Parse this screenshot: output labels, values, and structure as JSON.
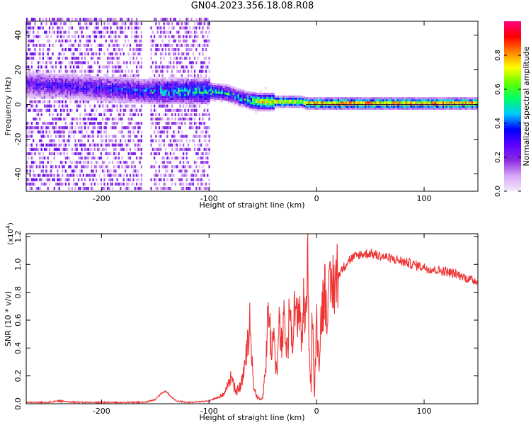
{
  "title": "GN04.2023.356.18.08.R08",
  "chart_data": [
    {
      "type": "heatmap",
      "xlabel": "Height of straight line (km)",
      "ylabel": "Frequency (Hz)",
      "xlim": [
        -270,
        150
      ],
      "ylim": [
        -50,
        48
      ],
      "xticks": [
        -200,
        -100,
        0,
        100
      ],
      "yticks": [
        -40,
        -20,
        0,
        20,
        40
      ],
      "colorbar": {
        "label": "Normalized spectral amplitude",
        "range": [
          0,
          1
        ],
        "ticks": [
          "0.0",
          "0.2",
          "0.4",
          "0.6",
          "0.8"
        ],
        "colors": [
          "#f4eafc",
          "#d6a6f7",
          "#8a2be2",
          "#5a00ff",
          "#0000ff",
          "#00c8ff",
          "#00ff64",
          "#64ff00",
          "#ffff00",
          "#ff8000",
          "#ff0000",
          "#ff0080"
        ]
      },
      "ridge": {
        "x": [
          -270,
          -240,
          -210,
          -180,
          -160,
          -140,
          -120,
          -100,
          -85,
          -75,
          -65,
          -55,
          -45,
          -35,
          -25,
          -15,
          -10,
          0,
          50,
          100,
          150
        ],
        "frequency": [
          11,
          10,
          9,
          8,
          7,
          7,
          7,
          7,
          6,
          4,
          2,
          1,
          1,
          1,
          1,
          1,
          0,
          0,
          0,
          0,
          0
        ],
        "amplitude": [
          0.3,
          0.35,
          0.35,
          0.4,
          0.45,
          0.55,
          0.55,
          0.6,
          0.55,
          0.5,
          0.6,
          0.75,
          0.85,
          0.85,
          0.85,
          0.8,
          0.9,
          0.95,
          0.95,
          0.95,
          0.95
        ]
      }
    },
    {
      "type": "line",
      "xlabel": "Height of straight line (km)",
      "ylabel": "SNR (10 * v/v)",
      "multiplier": "(x10",
      "multiplier_exp": "4",
      "multiplier_close": ")",
      "xlim": [
        -270,
        150
      ],
      "ylim": [
        0,
        1.22
      ],
      "xticks": [
        -200,
        -100,
        0,
        100
      ],
      "yticks": [
        "0.0",
        "0.2",
        "0.4",
        "0.6",
        "0.8",
        "1.0",
        "1.2"
      ],
      "color": "#ee3333",
      "series": [
        {
          "x": [
            -270,
            -250,
            -240,
            -220,
            -200,
            -180,
            -160,
            -150,
            -145,
            -140,
            -135,
            -130,
            -120,
            -100,
            -90,
            -85,
            -80,
            -75,
            -70,
            -65,
            -62,
            -60,
            -58,
            -55,
            -52,
            -50,
            -47,
            -45,
            -42,
            -40,
            -37,
            -35,
            -32,
            -30,
            -27,
            -25,
            -22,
            -20,
            -18,
            -16,
            -14,
            -12,
            -10,
            -8,
            -7,
            -6,
            -5,
            -4,
            -2,
            0,
            2,
            5,
            8,
            10,
            15,
            20,
            25,
            30,
            40,
            50,
            60,
            70,
            80,
            90,
            100,
            110,
            120,
            130,
            140,
            150
          ],
          "y": [
            0.01,
            0.01,
            0.02,
            0.01,
            0.01,
            0.01,
            0.01,
            0.03,
            0.07,
            0.09,
            0.05,
            0.02,
            0.01,
            0.02,
            0.05,
            0.08,
            0.2,
            0.08,
            0.14,
            0.35,
            0.62,
            0.3,
            0.1,
            0.05,
            0.03,
            0.05,
            0.3,
            0.7,
            0.4,
            0.5,
            0.2,
            0.55,
            0.4,
            0.6,
            0.35,
            0.72,
            0.5,
            0.68,
            0.55,
            0.78,
            0.45,
            0.7,
            0.6,
            1.22,
            0.4,
            0.25,
            0.1,
            0.75,
            0.02,
            0.62,
            0.3,
            0.7,
            0.82,
            0.7,
            0.86,
            0.92,
            0.98,
            1.03,
            1.07,
            1.08,
            1.06,
            1.04,
            1.02,
            1.0,
            0.98,
            0.96,
            0.95,
            0.93,
            0.9,
            0.88
          ]
        }
      ]
    }
  ]
}
